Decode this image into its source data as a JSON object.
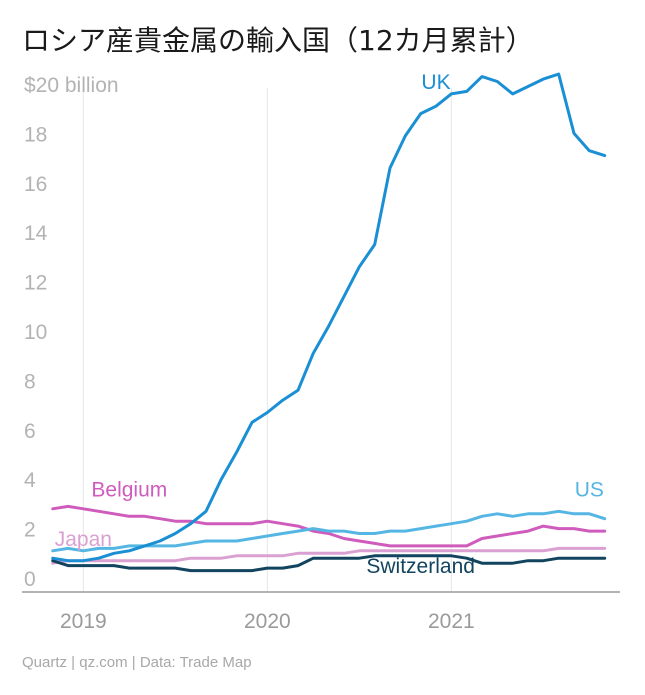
{
  "chart_data": {
    "type": "line",
    "title": "ロシア産貴金属の輸入国（12カ月累計）",
    "source": "Quartz | qz.com | Data: Trade Map",
    "ylabel": "",
    "ylim": [
      0,
      20
    ],
    "yticks": [
      {
        "value": 0,
        "label": "0"
      },
      {
        "value": 2,
        "label": "2"
      },
      {
        "value": 4,
        "label": "4"
      },
      {
        "value": 6,
        "label": "6"
      },
      {
        "value": 8,
        "label": "8"
      },
      {
        "value": 10,
        "label": "10"
      },
      {
        "value": 12,
        "label": "12"
      },
      {
        "value": 14,
        "label": "14"
      },
      {
        "value": 16,
        "label": "16"
      },
      {
        "value": 18,
        "label": "18"
      },
      {
        "value": 20,
        "label": "$20 billion"
      }
    ],
    "xlim": [
      "2018-09",
      "2021-12"
    ],
    "xticks": [
      {
        "value": "2019-01",
        "label": "2019"
      },
      {
        "value": "2020-01",
        "label": "2020"
      },
      {
        "value": "2021-01",
        "label": "2021"
      }
    ],
    "grid": {
      "vertical": true,
      "horizontal": false
    },
    "months": [
      "2018-11",
      "2018-12",
      "2019-01",
      "2019-02",
      "2019-03",
      "2019-04",
      "2019-05",
      "2019-06",
      "2019-07",
      "2019-08",
      "2019-09",
      "2019-10",
      "2019-11",
      "2019-12",
      "2020-01",
      "2020-02",
      "2020-03",
      "2020-04",
      "2020-05",
      "2020-06",
      "2020-07",
      "2020-08",
      "2020-09",
      "2020-10",
      "2020-11",
      "2020-12",
      "2021-01",
      "2021-02",
      "2021-03",
      "2021-04",
      "2021-05",
      "2021-06",
      "2021-07",
      "2021-08",
      "2021-09",
      "2021-10",
      "2021-11"
    ],
    "series": [
      {
        "name": "UK",
        "color": "#1a8fd4",
        "label_at": "2020-12",
        "label_y": 19.8,
        "values": [
          0.8,
          0.7,
          0.7,
          0.8,
          1.0,
          1.1,
          1.3,
          1.5,
          1.8,
          2.2,
          2.7,
          4.0,
          5.1,
          6.3,
          6.7,
          7.2,
          7.6,
          9.1,
          10.2,
          11.4,
          12.6,
          13.5,
          16.6,
          17.9,
          18.8,
          19.1,
          19.6,
          19.7,
          20.3,
          20.1,
          19.6,
          19.9,
          20.2,
          20.4,
          18.0,
          17.3,
          17.1
        ]
      },
      {
        "name": "US",
        "color": "#55b6e4",
        "label_at": "2021-10",
        "label_y": 3.3,
        "values": [
          1.1,
          1.2,
          1.1,
          1.2,
          1.2,
          1.3,
          1.3,
          1.3,
          1.3,
          1.4,
          1.5,
          1.5,
          1.5,
          1.6,
          1.7,
          1.8,
          1.9,
          2.0,
          1.9,
          1.9,
          1.8,
          1.8,
          1.9,
          1.9,
          2.0,
          2.1,
          2.2,
          2.3,
          2.5,
          2.6,
          2.5,
          2.6,
          2.6,
          2.7,
          2.6,
          2.6,
          2.4
        ]
      },
      {
        "name": "Belgium",
        "color": "#cf5cbd",
        "label_at": "2019-04",
        "label_y": 3.3,
        "values": [
          2.8,
          2.9,
          2.8,
          2.7,
          2.6,
          2.5,
          2.5,
          2.4,
          2.3,
          2.3,
          2.2,
          2.2,
          2.2,
          2.2,
          2.3,
          2.2,
          2.1,
          1.9,
          1.8,
          1.6,
          1.5,
          1.4,
          1.3,
          1.3,
          1.3,
          1.3,
          1.3,
          1.3,
          1.6,
          1.7,
          1.8,
          1.9,
          2.1,
          2.0,
          2.0,
          1.9,
          1.9
        ]
      },
      {
        "name": "Japan",
        "color": "#dba0d2",
        "label_at": "2019-01",
        "label_y": 1.3,
        "values": [
          0.6,
          0.7,
          0.7,
          0.7,
          0.7,
          0.7,
          0.7,
          0.7,
          0.7,
          0.8,
          0.8,
          0.8,
          0.9,
          0.9,
          0.9,
          0.9,
          1.0,
          1.0,
          1.0,
          1.0,
          1.1,
          1.1,
          1.1,
          1.1,
          1.1,
          1.1,
          1.1,
          1.1,
          1.1,
          1.1,
          1.1,
          1.1,
          1.1,
          1.2,
          1.2,
          1.2,
          1.2
        ]
      },
      {
        "name": "Switzerland",
        "color": "#12445f",
        "label_at": "2020-11",
        "label_y": 0.2,
        "values": [
          0.7,
          0.5,
          0.5,
          0.5,
          0.5,
          0.4,
          0.4,
          0.4,
          0.4,
          0.3,
          0.3,
          0.3,
          0.3,
          0.3,
          0.4,
          0.4,
          0.5,
          0.8,
          0.8,
          0.8,
          0.8,
          0.9,
          0.9,
          0.9,
          0.9,
          0.9,
          0.9,
          0.8,
          0.6,
          0.6,
          0.6,
          0.7,
          0.7,
          0.8,
          0.8,
          0.8,
          0.8
        ]
      }
    ]
  }
}
